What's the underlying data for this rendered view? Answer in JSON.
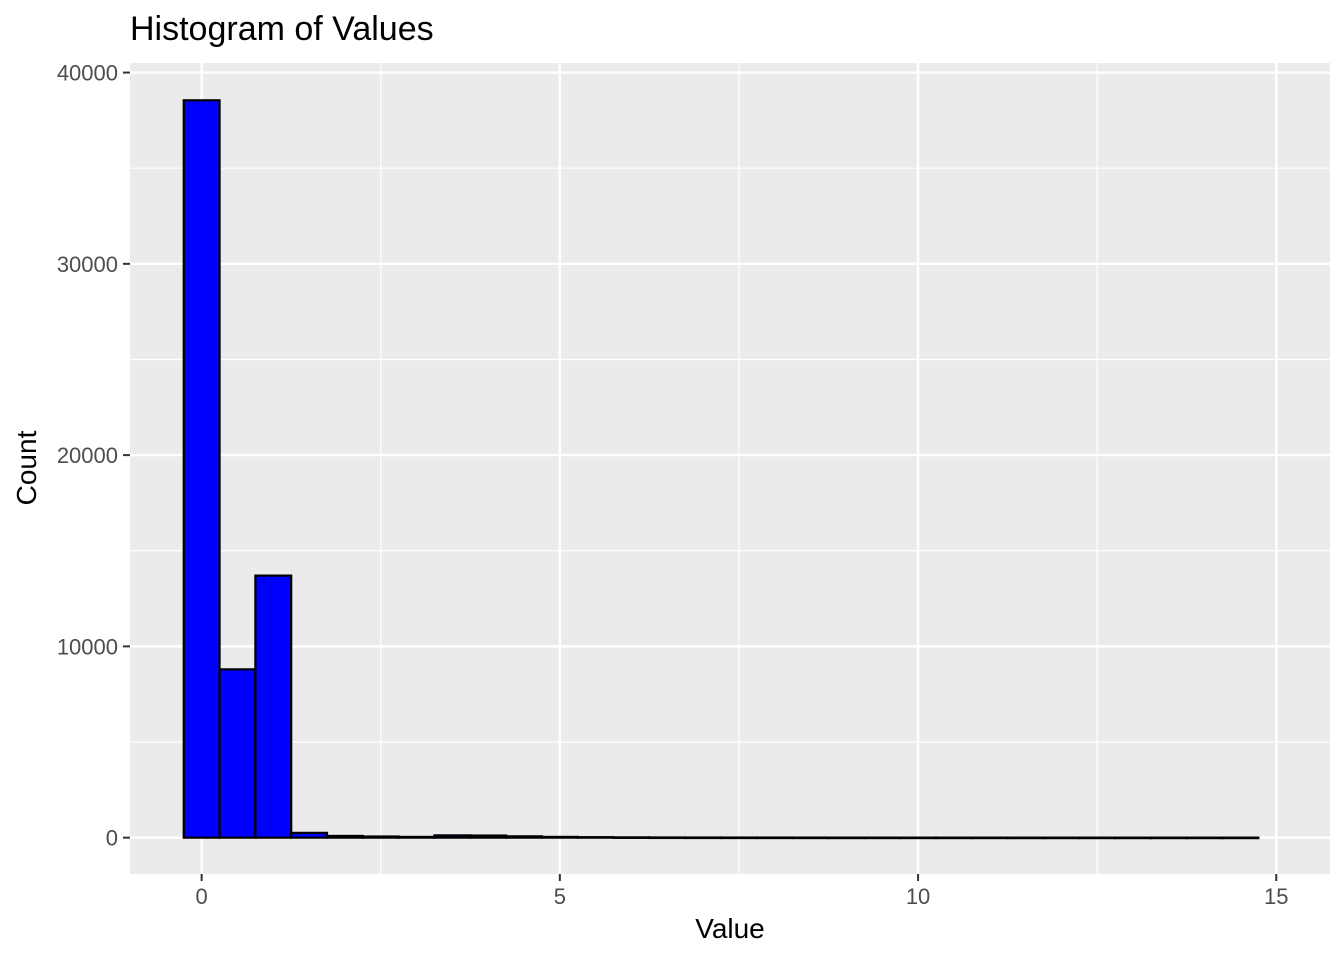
{
  "chart_data": {
    "type": "bar",
    "title": "Histogram of Values",
    "xlabel": "Value",
    "ylabel": "Count",
    "bin_width": 0.5,
    "bins": [
      {
        "start": -0.25,
        "end": 0.25,
        "count": 38550
      },
      {
        "start": 0.25,
        "end": 0.75,
        "count": 8800
      },
      {
        "start": 0.75,
        "end": 1.25,
        "count": 13700
      },
      {
        "start": 1.25,
        "end": 1.75,
        "count": 250
      },
      {
        "start": 1.75,
        "end": 2.25,
        "count": 90
      },
      {
        "start": 2.25,
        "end": 2.75,
        "count": 60
      },
      {
        "start": 2.75,
        "end": 3.25,
        "count": 40
      },
      {
        "start": 3.25,
        "end": 3.75,
        "count": 120
      },
      {
        "start": 3.75,
        "end": 4.25,
        "count": 110
      },
      {
        "start": 4.25,
        "end": 4.75,
        "count": 70
      },
      {
        "start": 4.75,
        "end": 5.25,
        "count": 40
      },
      {
        "start": 5.25,
        "end": 5.75,
        "count": 25
      },
      {
        "start": 5.75,
        "end": 6.25,
        "count": 15
      },
      {
        "start": 6.25,
        "end": 6.75,
        "count": 10
      },
      {
        "start": 6.75,
        "end": 7.25,
        "count": 8
      },
      {
        "start": 7.25,
        "end": 7.75,
        "count": 6
      },
      {
        "start": 7.75,
        "end": 8.25,
        "count": 5
      },
      {
        "start": 8.25,
        "end": 8.75,
        "count": 4
      },
      {
        "start": 8.75,
        "end": 9.25,
        "count": 3
      },
      {
        "start": 9.25,
        "end": 9.75,
        "count": 3
      },
      {
        "start": 9.75,
        "end": 10.25,
        "count": 2
      },
      {
        "start": 10.25,
        "end": 10.75,
        "count": 2
      },
      {
        "start": 10.75,
        "end": 11.25,
        "count": 2
      },
      {
        "start": 11.25,
        "end": 11.75,
        "count": 1
      },
      {
        "start": 11.75,
        "end": 12.25,
        "count": 1
      },
      {
        "start": 12.25,
        "end": 12.75,
        "count": 1
      },
      {
        "start": 12.75,
        "end": 13.25,
        "count": 1
      },
      {
        "start": 13.25,
        "end": 13.75,
        "count": 1
      },
      {
        "start": 13.75,
        "end": 14.25,
        "count": 1
      },
      {
        "start": 14.25,
        "end": 14.75,
        "count": 1
      }
    ],
    "xlim": [
      -1,
      15.75
    ],
    "ylim": [
      -1900,
      40500
    ],
    "x_ticks": [
      0,
      5,
      10,
      15
    ],
    "x_tick_labels": [
      "0",
      "5",
      "10",
      "15"
    ],
    "y_ticks": [
      0,
      10000,
      20000,
      30000,
      40000
    ],
    "y_tick_labels": [
      "0",
      "10000",
      "20000",
      "30000",
      "40000"
    ],
    "grid": true,
    "legend": "none",
    "colors": {
      "bar_fill": "#0000ff",
      "bar_outline": "#000000",
      "panel_background": "#ebebeb",
      "grid": "#ffffff"
    }
  }
}
